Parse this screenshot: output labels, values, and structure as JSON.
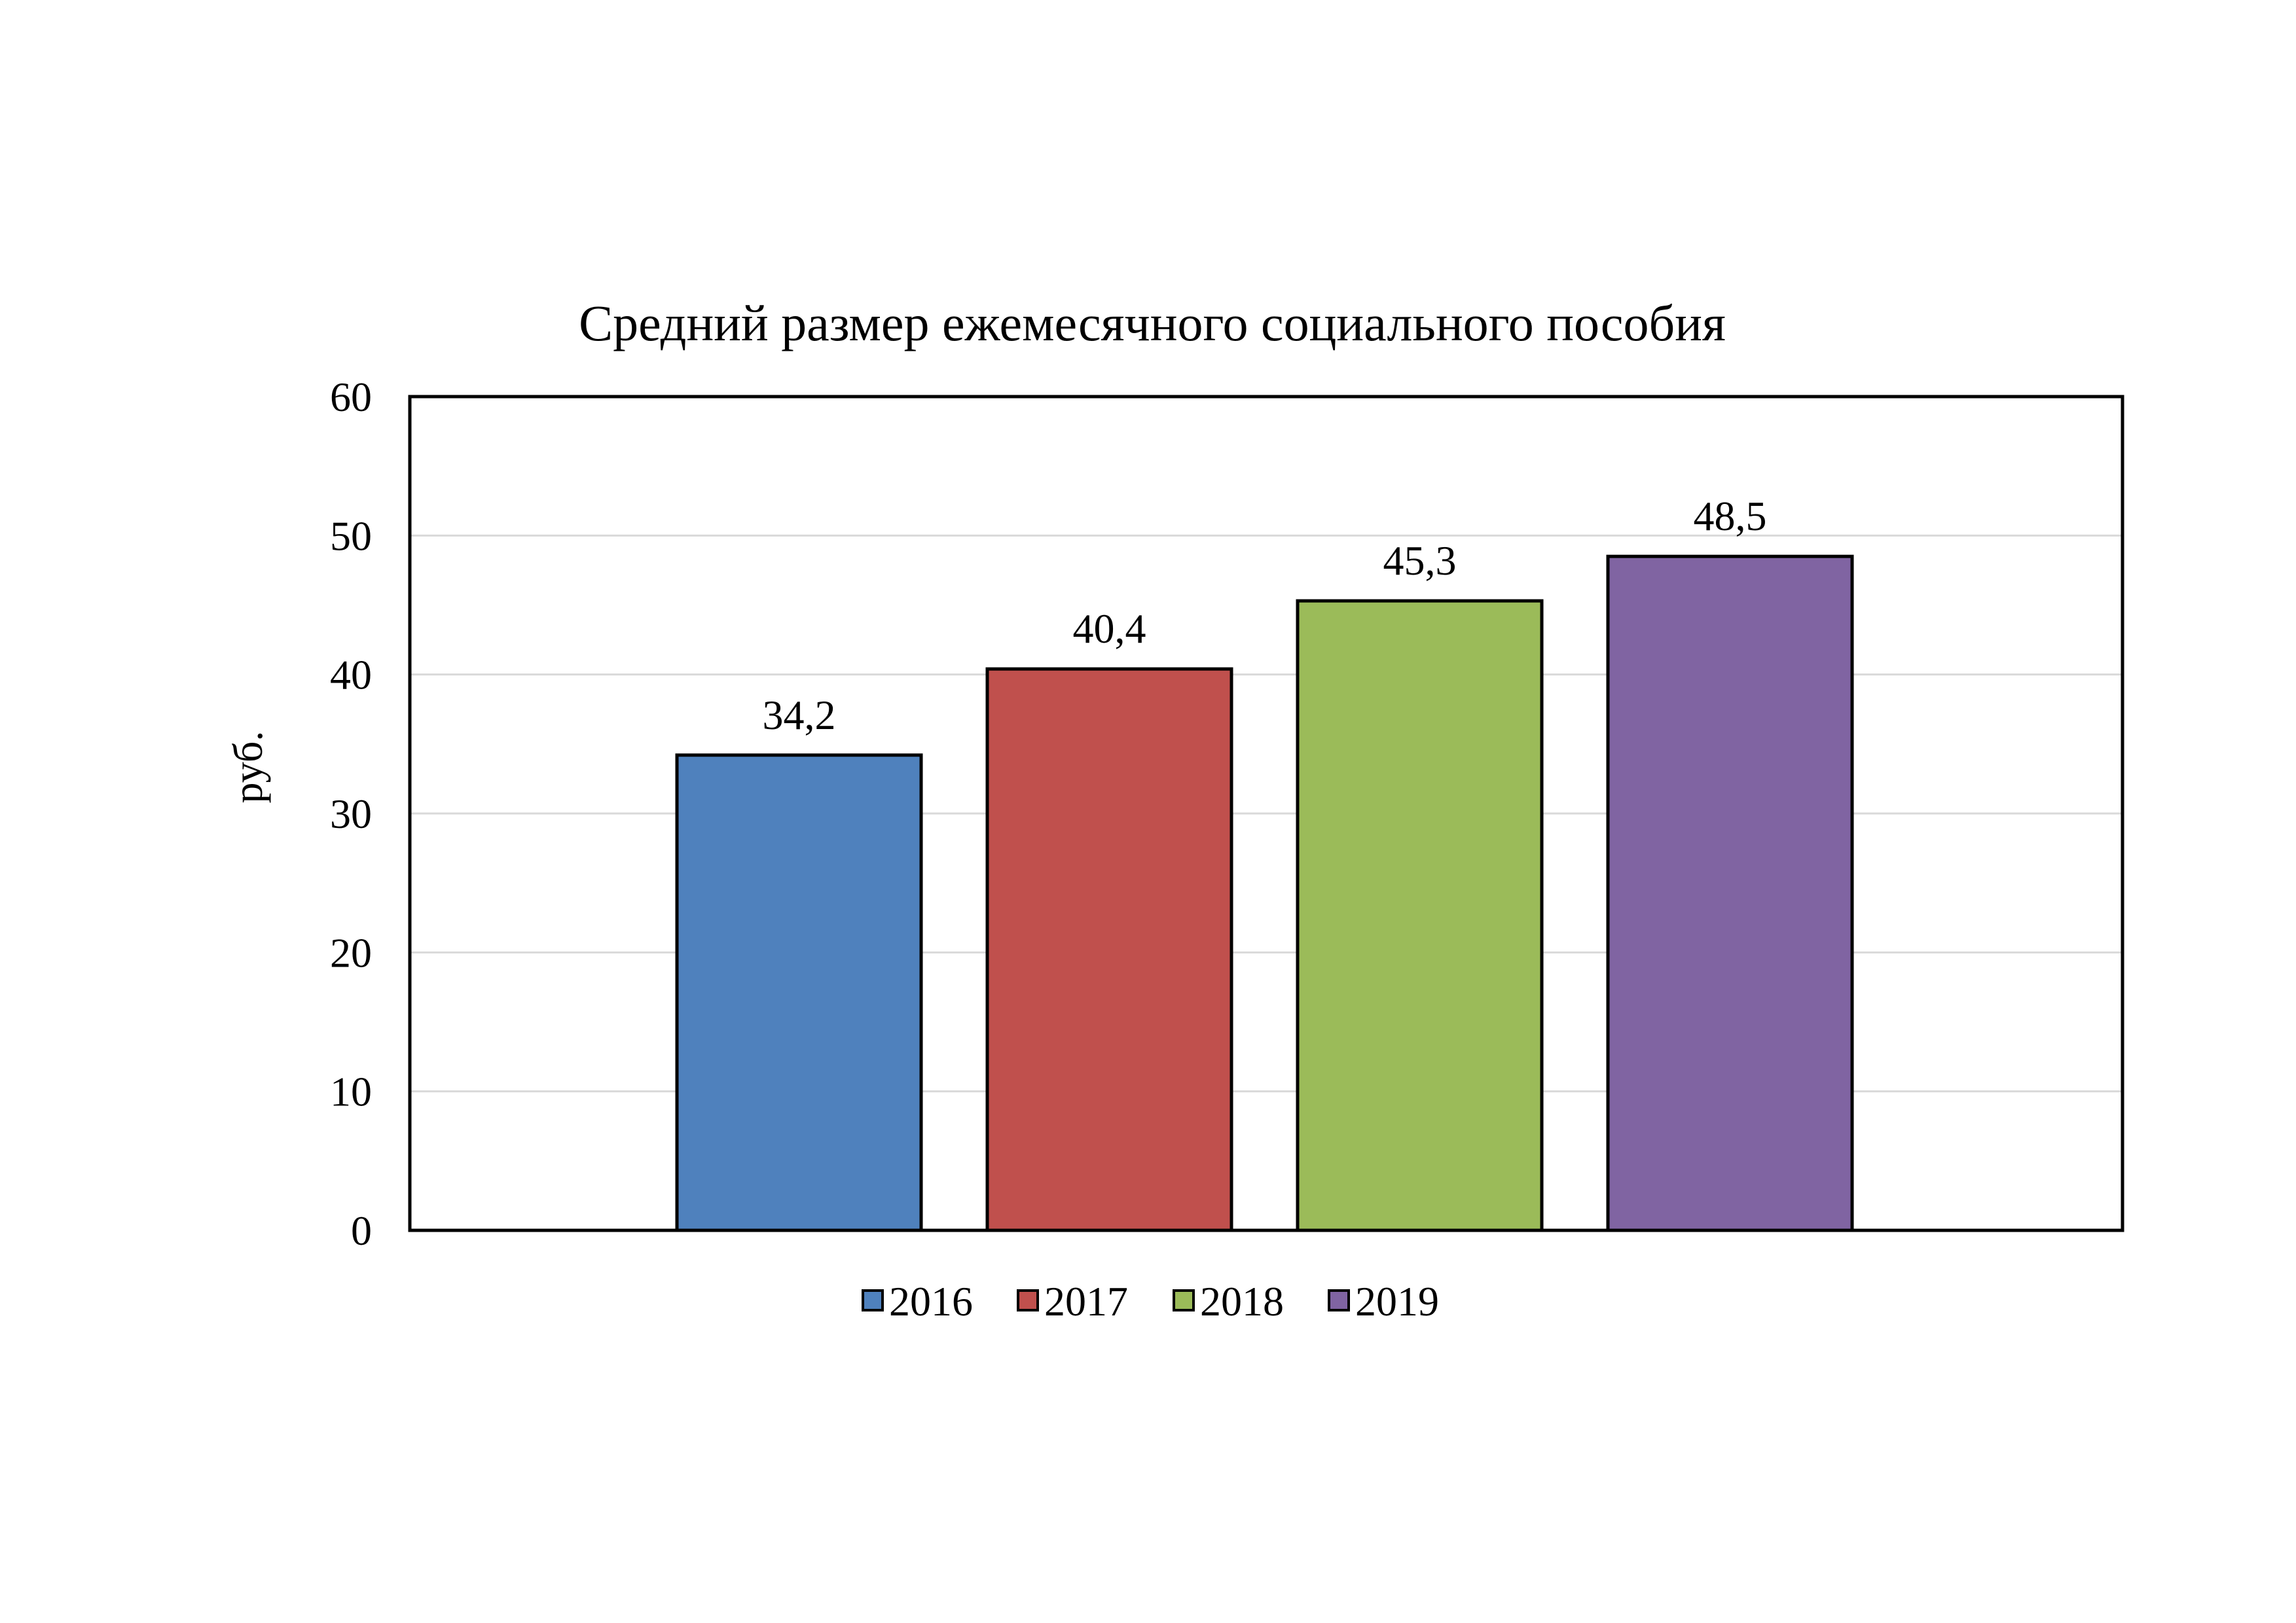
{
  "chart_data": {
    "type": "bar",
    "title": "Средний размер ежемесячного социального пособия",
    "xlabel": "",
    "ylabel": "руб.",
    "ylim": [
      0,
      60
    ],
    "yticks": [
      "0",
      "10",
      "20",
      "30",
      "40",
      "50",
      "60"
    ],
    "grid": true,
    "legend_position": "bottom",
    "series": [
      {
        "name": "2016",
        "values": [
          34.2
        ],
        "label": "34,2",
        "color": "#4F81BD"
      },
      {
        "name": "2017",
        "values": [
          40.4
        ],
        "label": "40,4",
        "color": "#C0504D"
      },
      {
        "name": "2018",
        "values": [
          45.3
        ],
        "label": "45,3",
        "color": "#9BBB59"
      },
      {
        "name": "2019",
        "values": [
          48.5
        ],
        "label": "48,5",
        "color": "#8064A2"
      }
    ]
  }
}
